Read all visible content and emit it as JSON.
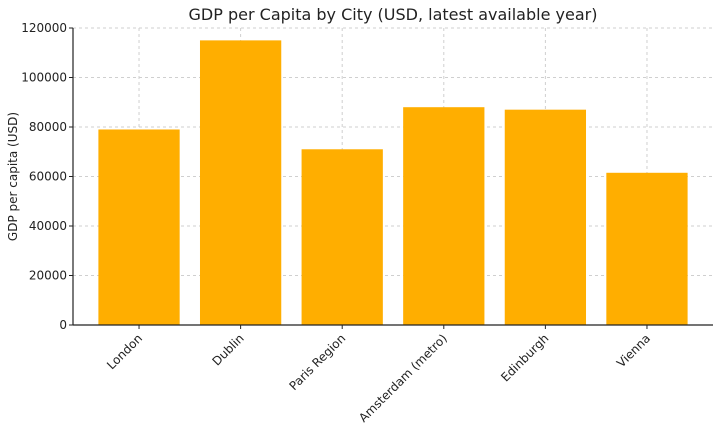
{
  "chart_data": {
    "type": "bar",
    "title": "GDP per Capita by City (USD, latest available year)",
    "xlabel": "",
    "ylabel": "GDP per capita (USD)",
    "categories": [
      "London",
      "Dublin",
      "Paris Region",
      "Amsterdam (metro)",
      "Edinburgh",
      "Vienna"
    ],
    "values": [
      79000,
      115000,
      71000,
      88000,
      87000,
      61500
    ],
    "ylim": [
      0,
      120000
    ],
    "yticks": [
      0,
      20000,
      40000,
      60000,
      80000,
      100000,
      120000
    ],
    "grid": true,
    "bar_color": "#FFAE00"
  }
}
